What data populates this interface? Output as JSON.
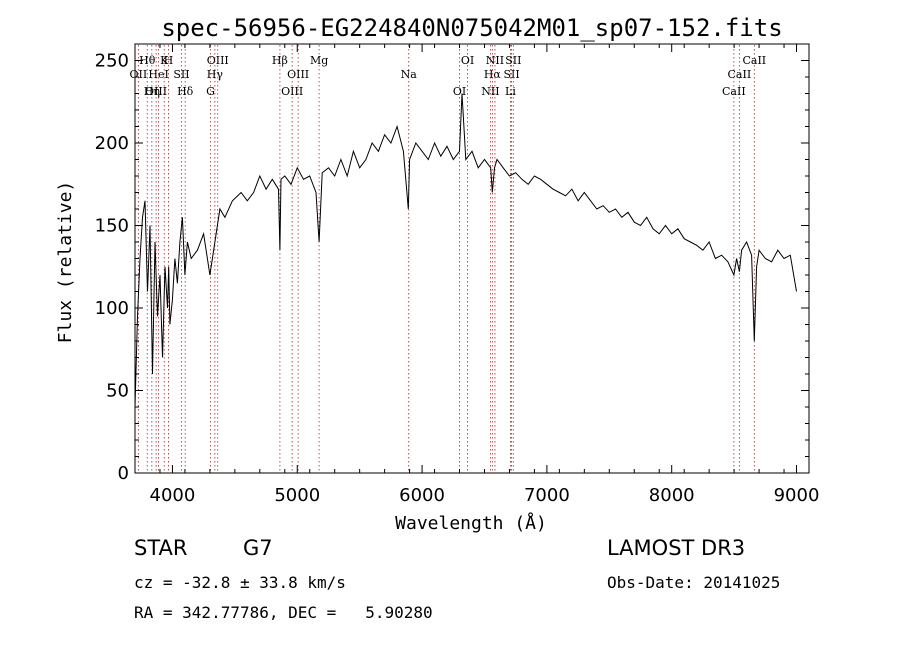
{
  "chart_data": {
    "type": "line",
    "title": "spec-56956-EG224840N075042M01_sp07-152.fits",
    "xlabel": "Wavelength (Å)",
    "ylabel": "Flux (relative)",
    "xlim": [
      3700,
      9100
    ],
    "ylim": [
      0,
      260
    ],
    "x_ticks": [
      4000,
      5000,
      6000,
      7000,
      8000,
      9000
    ],
    "y_ticks": [
      0,
      50,
      100,
      150,
      200,
      250
    ],
    "grid": false,
    "series": [
      {
        "name": "flux",
        "color": "#000000",
        "x": [
          3700,
          3720,
          3740,
          3760,
          3780,
          3800,
          3820,
          3840,
          3860,
          3880,
          3900,
          3920,
          3940,
          3960,
          3970,
          3980,
          4000,
          4020,
          4040,
          4060,
          4080,
          4100,
          4120,
          4150,
          4200,
          4250,
          4300,
          4340,
          4380,
          4420,
          4480,
          4550,
          4600,
          4650,
          4700,
          4750,
          4800,
          4850,
          4861,
          4870,
          4900,
          4950,
          5000,
          5050,
          5100,
          5150,
          5175,
          5200,
          5250,
          5300,
          5350,
          5400,
          5450,
          5500,
          5550,
          5600,
          5650,
          5700,
          5750,
          5800,
          5850,
          5890,
          5900,
          5950,
          6000,
          6050,
          6100,
          6150,
          6200,
          6250,
          6300,
          6320,
          6350,
          6400,
          6450,
          6500,
          6550,
          6563,
          6580,
          6600,
          6650,
          6700,
          6750,
          6800,
          6850,
          6900,
          6950,
          7000,
          7050,
          7100,
          7150,
          7200,
          7250,
          7300,
          7350,
          7400,
          7450,
          7500,
          7550,
          7600,
          7650,
          7700,
          7750,
          7800,
          7850,
          7900,
          7950,
          8000,
          8050,
          8100,
          8150,
          8200,
          8250,
          8300,
          8350,
          8400,
          8450,
          8498,
          8520,
          8542,
          8560,
          8600,
          8640,
          8662,
          8680,
          8700,
          8750,
          8800,
          8850,
          8900,
          8950,
          9000
        ],
        "y": [
          40,
          95,
          130,
          155,
          165,
          110,
          150,
          60,
          140,
          95,
          120,
          70,
          125,
          100,
          125,
          90,
          105,
          130,
          115,
          140,
          155,
          120,
          140,
          130,
          135,
          145,
          120,
          140,
          160,
          155,
          165,
          170,
          165,
          170,
          180,
          172,
          178,
          172,
          135,
          178,
          180,
          175,
          185,
          178,
          180,
          170,
          140,
          182,
          185,
          180,
          190,
          180,
          195,
          185,
          190,
          200,
          195,
          205,
          200,
          210,
          195,
          160,
          190,
          200,
          195,
          190,
          200,
          192,
          198,
          190,
          195,
          230,
          190,
          195,
          185,
          190,
          185,
          170,
          185,
          190,
          185,
          180,
          182,
          178,
          175,
          180,
          178,
          175,
          172,
          170,
          168,
          172,
          165,
          170,
          165,
          160,
          162,
          158,
          160,
          155,
          158,
          152,
          150,
          155,
          148,
          145,
          150,
          145,
          148,
          142,
          140,
          138,
          135,
          140,
          130,
          132,
          128,
          120,
          130,
          122,
          135,
          140,
          132,
          80,
          125,
          135,
          130,
          128,
          135,
          130,
          132,
          110
        ]
      }
    ],
    "line_markers": [
      {
        "label": "Hθ",
        "x": 3798
      },
      {
        "label": "OII",
        "x": 3727
      },
      {
        "label": "OIII",
        "x": 3869
      },
      {
        "label": "K",
        "x": 3934
      },
      {
        "label": "HeI",
        "x": 3889
      },
      {
        "label": "Hη",
        "x": 3835
      },
      {
        "label": "H",
        "x": 3968
      },
      {
        "label": "SII",
        "x": 4072
      },
      {
        "label": "Hδ",
        "x": 4102
      },
      {
        "label": "OIII",
        "x": 4363
      },
      {
        "label": "Hγ",
        "x": 4340
      },
      {
        "label": "G",
        "x": 4305
      },
      {
        "label": "Hβ",
        "x": 4861
      },
      {
        "label": "OIII",
        "x": 5007
      },
      {
        "label": "OIII",
        "x": 4959
      },
      {
        "label": "Mg",
        "x": 5175
      },
      {
        "label": "Na",
        "x": 5893
      },
      {
        "label": "OI",
        "x": 6300
      },
      {
        "label": "OI",
        "x": 6364
      },
      {
        "label": "Hα",
        "x": 6563
      },
      {
        "label": "NII",
        "x": 6548
      },
      {
        "label": "NII",
        "x": 6584
      },
      {
        "label": "SII",
        "x": 6717
      },
      {
        "label": "Li",
        "x": 6708
      },
      {
        "label": "SII",
        "x": 6731
      },
      {
        "label": "CaII",
        "x": 8542
      },
      {
        "label": "CaII",
        "x": 8498
      },
      {
        "label": "CaII",
        "x": 8662
      }
    ]
  },
  "info": {
    "object_class": "STAR",
    "subclass": "G7",
    "survey": "LAMOST DR3",
    "redshift_line": "cz = -32.8 ± 33.8 km/s",
    "obs_date_line": "Obs-Date: 20141025",
    "coords_line": "RA = 342.77786, DEC =   5.90280"
  }
}
